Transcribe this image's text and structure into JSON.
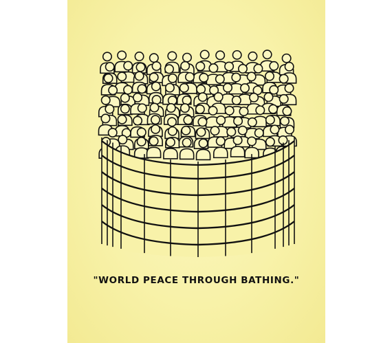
{
  "poster": {
    "caption": "\"WORLD PEACE THROUGH BATHING.\"",
    "illustration": "crowd-in-bathtub-illustration",
    "colors": {
      "paper": "#f8f2a9",
      "ink": "#111111",
      "fill": "#fbf7c2",
      "outer_background": "#ffffff"
    }
  }
}
